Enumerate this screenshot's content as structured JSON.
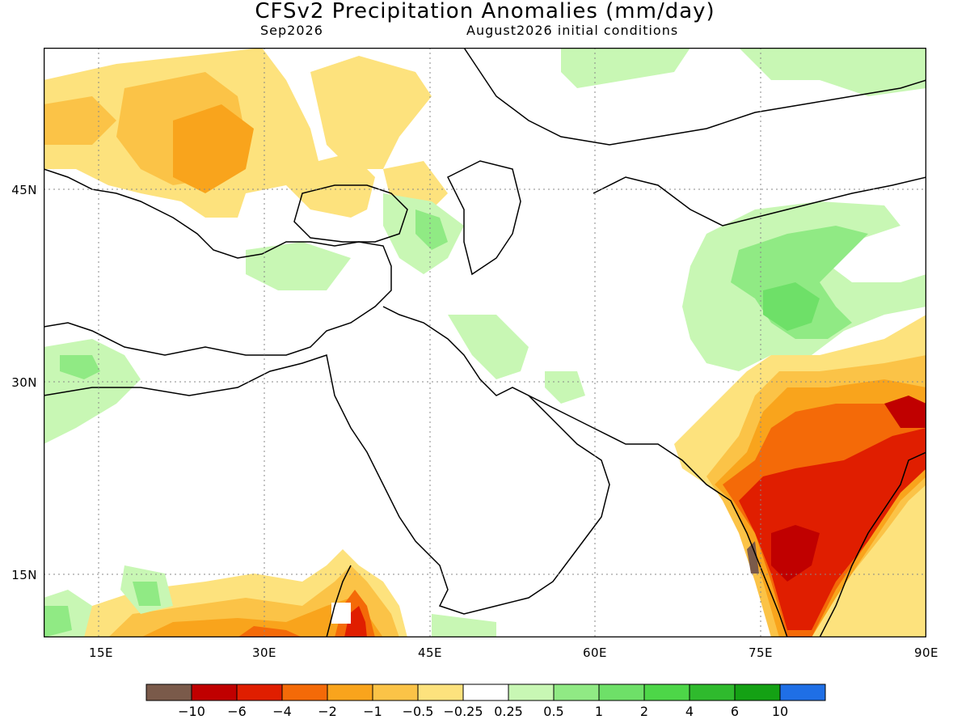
{
  "header": {
    "title": "CFSv2 Precipitation Anomalies (mm/day)",
    "forecast_month": "Sep2026",
    "initial_conditions": "August2026 initial conditions"
  },
  "map": {
    "lon_range": [
      10,
      90
    ],
    "lat_range": [
      10,
      55
    ],
    "gridlines": "dotted",
    "lat_labels": [
      {
        "lat": 45,
        "text": "45N"
      },
      {
        "lat": 30,
        "text": "30N"
      },
      {
        "lat": 15,
        "text": "15N"
      }
    ],
    "lon_labels": [
      {
        "lon": 15,
        "text": "15E"
      },
      {
        "lon": 30,
        "text": "30E"
      },
      {
        "lon": 45,
        "text": "45E"
      },
      {
        "lon": 60,
        "text": "60E"
      },
      {
        "lon": 75,
        "text": "75E"
      },
      {
        "lon": 90,
        "text": "90E"
      }
    ]
  },
  "legend": {
    "colors": [
      "#7a5a4a",
      "#c00000",
      "#e01e00",
      "#f46a08",
      "#f9a41c",
      "#fbc347",
      "#fde27d",
      "#ffffff",
      "#c8f7b4",
      "#90ea84",
      "#6ee068",
      "#4dd648",
      "#2fba2d",
      "#14a114",
      "#1f6fe6"
    ],
    "labels": [
      "−10",
      "−6",
      "−4",
      "−2",
      "−1",
      "−0.5",
      "−0.25",
      "0.25",
      "0.5",
      "1",
      "2",
      "4",
      "6",
      "10"
    ]
  }
}
